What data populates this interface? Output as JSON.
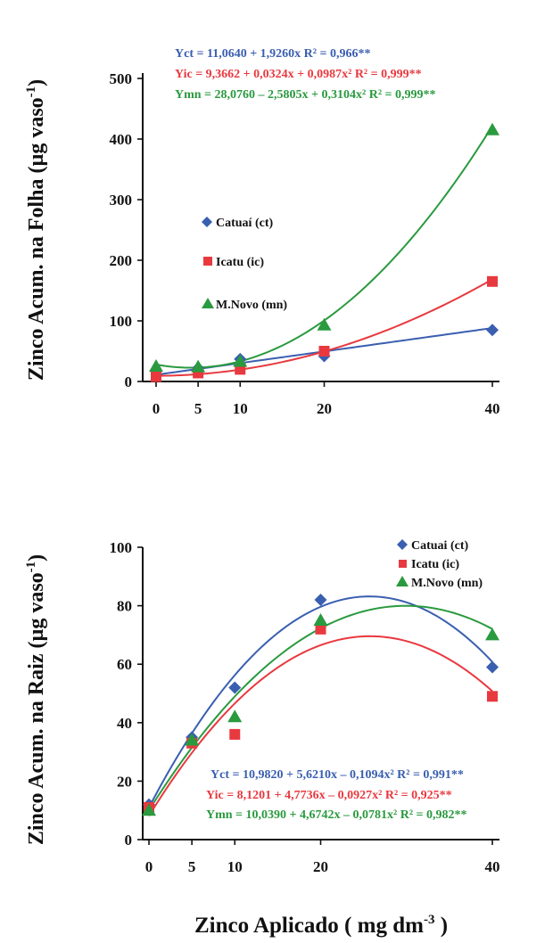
{
  "chart_data": [
    {
      "type": "scatter",
      "panel": "top",
      "ylabel": "Zinco Acum. na Folha (µg vaso⁻¹)",
      "ylabel_main": "Zinco Acum. na Folha (µg vaso",
      "ylabel_sup": "-1",
      "ylabel_close": ")",
      "x_ticks": [
        "0",
        "5",
        "10",
        "20",
        "40"
      ],
      "y_ticks": [
        "0",
        "100",
        "200",
        "300",
        "400",
        "500"
      ],
      "xlim": [
        0,
        40
      ],
      "ylim": [
        0,
        500
      ],
      "series": [
        {
          "name": "Catuaí (ct)",
          "color": "#3a5fb0",
          "marker": "diamond",
          "x": [
            0,
            5,
            10,
            20,
            40
          ],
          "y": [
            17,
            22,
            37,
            42,
            85
          ],
          "equation": "Yct = 11,0640 + 1,9260x R² = 0,966**",
          "coef": [
            11.064,
            1.926,
            0
          ]
        },
        {
          "name": "Icatu (ic)",
          "color": "#e8393f",
          "marker": "square",
          "x": [
            0,
            5,
            10,
            20,
            40
          ],
          "y": [
            8,
            14,
            20,
            50,
            165
          ],
          "equation": "Yic = 9,3662 + 0,0324x + 0,0987x² R² = 0,999**",
          "coef": [
            9.3662,
            0.0324,
            0.0987
          ]
        },
        {
          "name": "M.Novo (mn)",
          "color": "#2a9a3f",
          "marker": "triangle",
          "x": [
            0,
            5,
            10,
            20,
            40
          ],
          "y": [
            25,
            24,
            33,
            93,
            415
          ],
          "equation": "Ymn = 28,0760 – 2,5805x + 0,3104x² R² = 0,999**",
          "coef": [
            28.076,
            -2.5805,
            0.3104
          ]
        }
      ]
    },
    {
      "type": "scatter",
      "panel": "bottom",
      "ylabel": "Zinco Acum. na Raiz (µg vaso⁻¹)",
      "ylabel_main": "Zinco Acum. na Raiz (µg vaso",
      "ylabel_sup": "-1",
      "ylabel_close": ")",
      "xlabel": "Zinco Aplicado ( mg dm⁻³ )",
      "xlabel_main": "Zinco Aplicado ( mg dm",
      "xlabel_sup": "-3",
      "xlabel_close": " )",
      "x_ticks": [
        "0",
        "5",
        "10",
        "20",
        "40"
      ],
      "y_ticks": [
        "0",
        "20",
        "40",
        "60",
        "80",
        "100"
      ],
      "xlim": [
        0,
        40
      ],
      "ylim": [
        0,
        100
      ],
      "series": [
        {
          "name": "Catuai (ct)",
          "color": "#3a5fb0",
          "marker": "diamond",
          "x": [
            0,
            5,
            10,
            20,
            40
          ],
          "y": [
            12,
            35,
            52,
            82,
            59
          ],
          "equation": "Yct = 10,9820 + 5,6210x – 0,1094x² R² = 0,991**",
          "coef": [
            10.982,
            5.621,
            -0.1094
          ]
        },
        {
          "name": "Icatu (ic)",
          "color": "#e8393f",
          "marker": "square",
          "x": [
            0,
            5,
            10,
            20,
            40
          ],
          "y": [
            11,
            33,
            36,
            72,
            49
          ],
          "equation": "Yic = 8,1201 + 4,7736x – 0,0927x² R² = 0,925**",
          "coef": [
            8.1201,
            4.7736,
            -0.0927
          ]
        },
        {
          "name": "M.Novo (mn)",
          "color": "#2a9a3f",
          "marker": "triangle",
          "x": [
            0,
            5,
            10,
            20,
            40
          ],
          "y": [
            10,
            34,
            42,
            75,
            70
          ],
          "equation": "Ymn = 10,0390 + 4,6742x – 0,0781x² R² = 0,982**",
          "coef": [
            10.039,
            4.6742,
            -0.0781
          ]
        }
      ]
    }
  ]
}
